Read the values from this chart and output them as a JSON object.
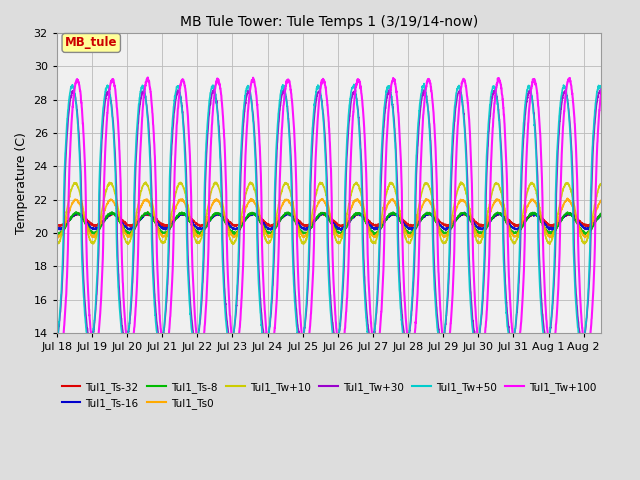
{
  "title": "MB Tule Tower: Tule Temps 1 (3/19/14-now)",
  "ylabel": "Temperature (C)",
  "ylim": [
    14,
    32
  ],
  "yticks": [
    14,
    16,
    18,
    20,
    22,
    24,
    26,
    28,
    30,
    32
  ],
  "n_days": 15.5,
  "x_tick_labels": [
    "Jul 18",
    "Jul 19",
    "Jul 20",
    "Jul 21",
    "Jul 22",
    "Jul 23",
    "Jul 24",
    "Jul 25",
    "Jul 26",
    "Jul 27",
    "Jul 28",
    "Jul 29",
    "Jul 30",
    "Jul 31",
    "Aug 1",
    "Aug 2"
  ],
  "legend_box_text": "MB_tule",
  "series": [
    {
      "label": "Tul1_Ts-32",
      "color": "#dd0000",
      "lw": 1.2,
      "base_temp": 20.8,
      "amplitude": 0.35,
      "phase": 0.0,
      "sharp": false
    },
    {
      "label": "Tul1_Ts-16",
      "color": "#0000cc",
      "lw": 1.2,
      "base_temp": 20.7,
      "amplitude": 0.45,
      "phase": 0.02,
      "sharp": false
    },
    {
      "label": "Tul1_Ts-8",
      "color": "#00bb00",
      "lw": 1.2,
      "base_temp": 20.6,
      "amplitude": 0.6,
      "phase": 0.04,
      "sharp": false
    },
    {
      "label": "Tul1_Ts0",
      "color": "#ffaa00",
      "lw": 1.2,
      "base_temp": 20.9,
      "amplitude": 1.1,
      "phase": 0.06,
      "sharp": false
    },
    {
      "label": "Tul1_Tw+10",
      "color": "#cccc00",
      "lw": 1.2,
      "base_temp": 21.2,
      "amplitude": 1.8,
      "phase": 0.08,
      "sharp": false
    },
    {
      "label": "Tul1_Tw+30",
      "color": "#9900cc",
      "lw": 1.2,
      "base_temp": 21.0,
      "amplitude": 7.5,
      "phase": 0.12,
      "sharp": true
    },
    {
      "label": "Tul1_Tw+50",
      "color": "#00cccc",
      "lw": 1.2,
      "base_temp": 21.0,
      "amplitude": 7.8,
      "phase": 0.14,
      "sharp": true
    },
    {
      "label": "Tul1_Tw+100",
      "color": "#ff00ff",
      "lw": 1.5,
      "base_temp": 21.0,
      "amplitude": 8.2,
      "phase": 0.0,
      "sharp": true
    }
  ],
  "bg_color": "#dddddd",
  "plot_bg_color": "#f0f0f0",
  "grid_color": "#bbbbbb",
  "fig_width": 6.4,
  "fig_height": 4.8,
  "dpi": 100
}
